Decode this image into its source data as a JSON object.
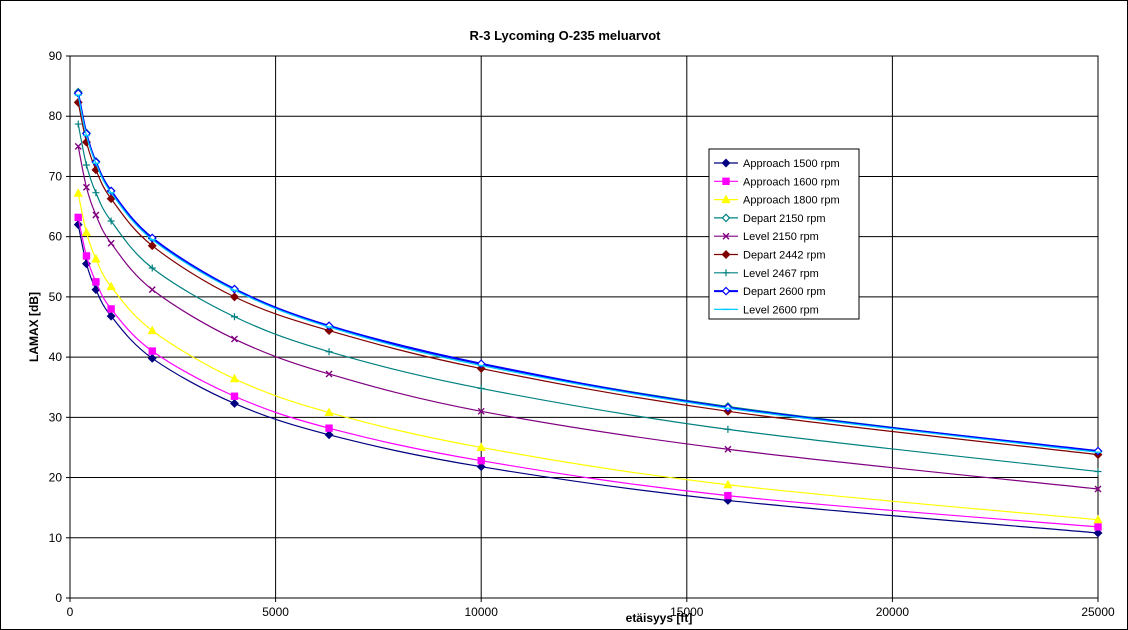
{
  "chart_data": {
    "type": "line",
    "title": "R-3  Lycoming O-235 meluarvot",
    "xlabel": "etäisyys [ft]",
    "ylabel": "LAMAX [dB]",
    "xlim": [
      0,
      25000
    ],
    "ylim": [
      0,
      90
    ],
    "x_ticks": [
      0,
      5000,
      10000,
      15000,
      20000,
      25000
    ],
    "y_ticks": [
      0,
      10,
      20,
      30,
      40,
      50,
      60,
      70,
      80,
      90
    ],
    "grid": true,
    "legend_position": "right",
    "x": [
      200,
      400,
      630,
      1000,
      2000,
      4000,
      6300,
      10000,
      16000,
      25000
    ],
    "series": [
      {
        "name": "Approach 1500 rpm",
        "color": "#000080",
        "marker": "diamond-filled",
        "values": [
          62,
          55.5,
          51.2,
          46.8,
          39.8,
          32.3,
          27.1,
          21.8,
          16.2,
          10.8
        ]
      },
      {
        "name": "Approach 1600 rpm",
        "color": "#ff00ff",
        "marker": "square-filled",
        "values": [
          63.2,
          56.8,
          52.5,
          48,
          41,
          33.5,
          28.2,
          22.8,
          17,
          11.8
        ]
      },
      {
        "name": "Approach 1800 rpm",
        "color": "#ffff00",
        "marker": "triangle-filled",
        "values": [
          67.2,
          60.7,
          56.3,
          51.7,
          44.4,
          36.4,
          30.8,
          25,
          18.8,
          13
        ]
      },
      {
        "name": "Depart 2150 rpm",
        "color": "#008080",
        "marker": "diamond-open",
        "values": [
          84,
          77.2,
          72.5,
          67.6,
          59.7,
          51.3,
          45.2,
          38.8,
          31.8,
          24.3
        ]
      },
      {
        "name": "Level 2150 rpm",
        "color": "#800080",
        "marker": "x",
        "values": [
          75,
          68.2,
          63.6,
          58.9,
          51.2,
          43,
          37.2,
          31,
          24.7,
          18.1
        ]
      },
      {
        "name": "Depart 2442 rpm",
        "color": "#800000",
        "marker": "diamond-filled",
        "values": [
          82.3,
          75.7,
          71.1,
          66.3,
          58.5,
          50,
          44.4,
          38.1,
          31,
          23.8
        ]
      },
      {
        "name": "Level 2467 rpm",
        "color": "#008080",
        "marker": "plus",
        "values": [
          78.7,
          71.9,
          67.3,
          62.6,
          54.8,
          46.7,
          40.9,
          34.8,
          28,
          21
        ]
      },
      {
        "name": "Depart 2600 rpm",
        "color": "#0000ff",
        "marker": "diamond-open",
        "values": [
          83.8,
          77.1,
          72.4,
          67.6,
          59.8,
          51.3,
          45.2,
          38.9,
          31.6,
          24.4
        ]
      },
      {
        "name": "Level 2600 rpm",
        "color": "#00ccff",
        "marker": "dash",
        "values": [
          83.5,
          76.8,
          72.2,
          67.3,
          59.5,
          51.1,
          45,
          38.6,
          31.5,
          24.2
        ]
      }
    ]
  }
}
